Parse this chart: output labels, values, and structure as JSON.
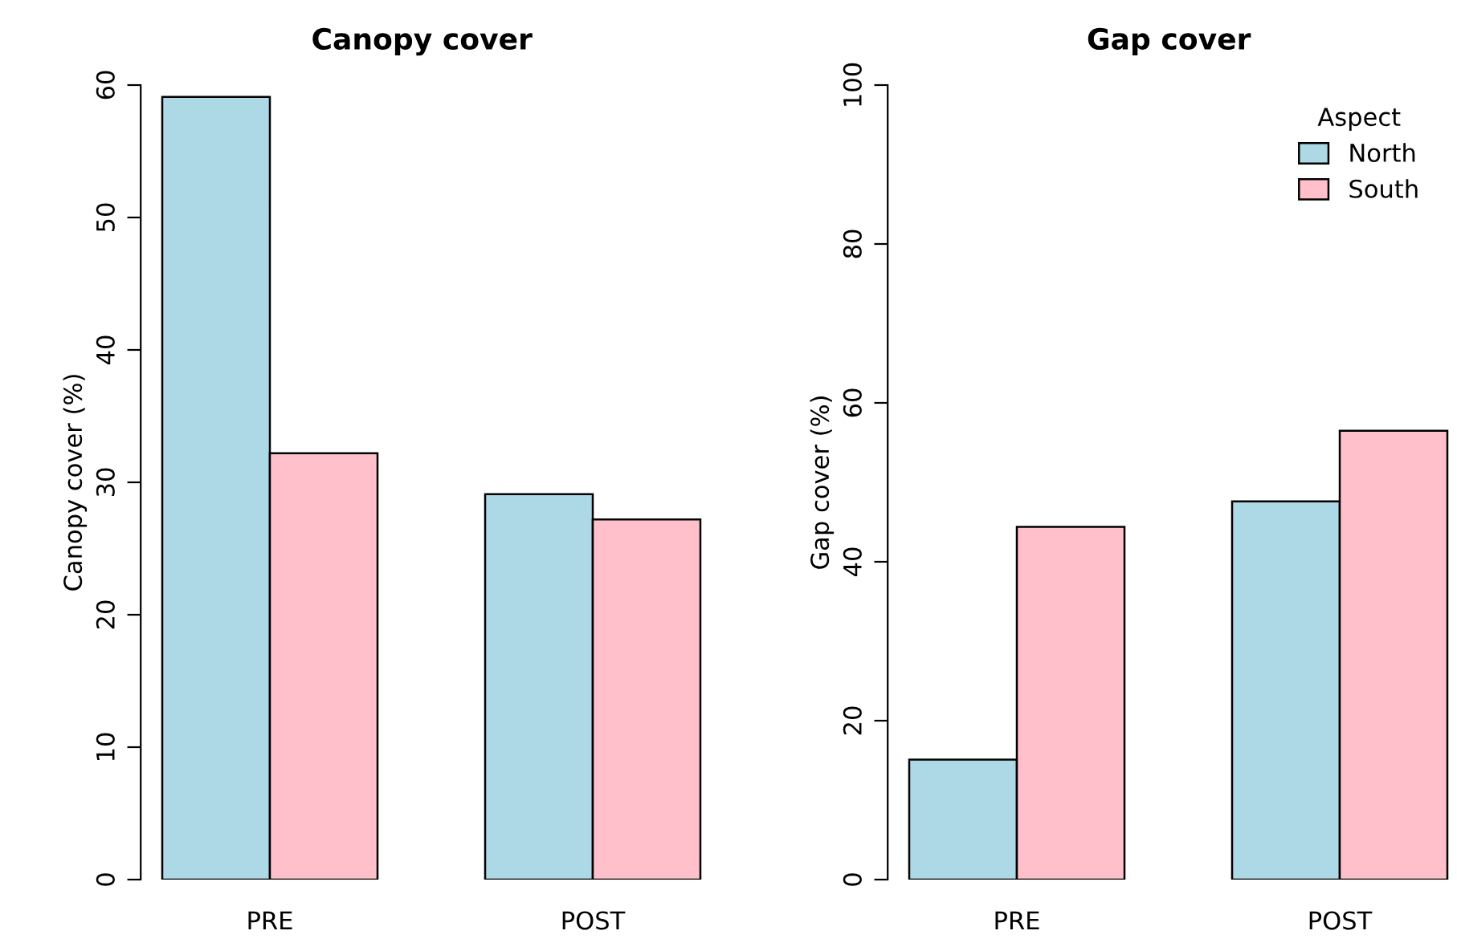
{
  "chart_data": [
    {
      "type": "bar",
      "title": "Canopy cover",
      "ylabel": "Canopy cover (%)",
      "categories": [
        "PRE",
        "POST"
      ],
      "series": [
        {
          "color": "#add8e6",
          "values": [
            59.1,
            29.1
          ]
        },
        {
          "color": "#ffc0cb",
          "values": [
            32.2,
            27.2
          ]
        }
      ],
      "ylim": [
        0,
        60
      ],
      "yticks": [
        0,
        10,
        20,
        30,
        40,
        50,
        60
      ],
      "grid": false
    },
    {
      "type": "bar",
      "title": "Gap cover",
      "ylabel": "Gap cover (%)",
      "categories": [
        "PRE",
        "POST"
      ],
      "legend_title": "Aspect",
      "series": [
        {
          "name": "North",
          "color": "#add8e6",
          "values": [
            15.1,
            47.6
          ]
        },
        {
          "name": "South",
          "color": "#ffc0cb",
          "values": [
            44.4,
            56.5
          ]
        }
      ],
      "ylim": [
        0,
        100
      ],
      "yticks": [
        0,
        20,
        40,
        60,
        80,
        100
      ],
      "grid": false,
      "legend": "top right"
    }
  ]
}
